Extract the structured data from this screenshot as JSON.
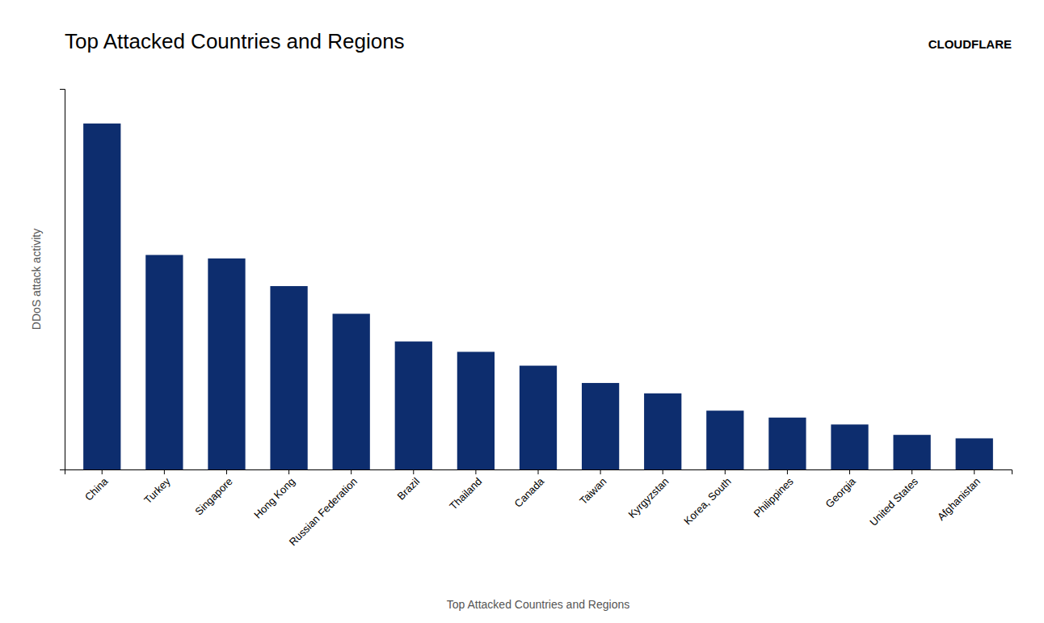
{
  "chart_data": {
    "type": "bar",
    "title": "Top Attacked Countries and Regions",
    "xlabel": "Top Attacked Countries and Regions",
    "ylabel": "DDoS attack activity",
    "annotations": [
      "CLOUDFLARE"
    ],
    "categories": [
      "China",
      "Turkey",
      "Singapore",
      "Hong Kong",
      "Russian Federation",
      "Brazil",
      "Thailand",
      "Canada",
      "Taiwan",
      "Kyrgyzstan",
      "Korea, South",
      "Philippines",
      "Georgia",
      "United States",
      "Afghanistan"
    ],
    "values": [
      100,
      62,
      61,
      53,
      45,
      37,
      34,
      30,
      25,
      22,
      17,
      15,
      13,
      10,
      9
    ],
    "color": "#0d2d6e",
    "ylim": [
      0,
      110
    ],
    "yticks": [],
    "grid": false,
    "tick_labels": "x"
  }
}
